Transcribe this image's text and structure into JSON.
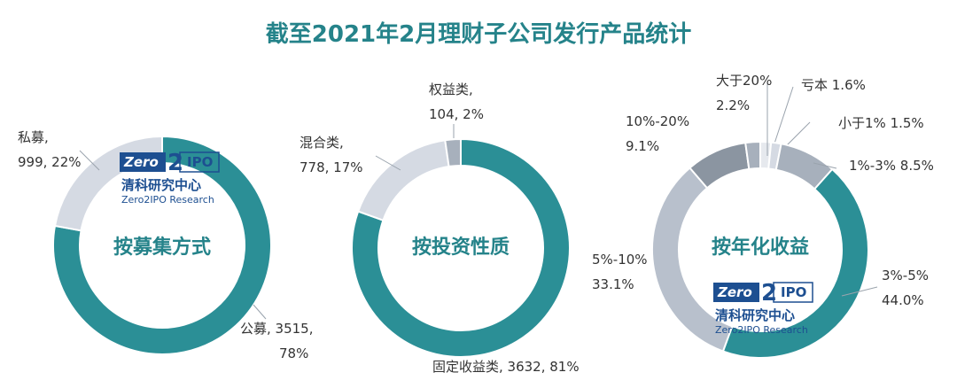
{
  "title": "截至2021年2月理财子公司发行产品统计",
  "colors": {
    "teal": "#2b8f96",
    "light_gray": "#d5dae3",
    "mid_gray": "#a7b0bc",
    "dark_gray": "#8b95a1",
    "pale_gray": "#e6e9ee",
    "soft_gray": "#b8c0cc",
    "title": "#25838a"
  },
  "logo": {
    "zero": "Zero",
    "two": "2",
    "ipo": "IPO",
    "cn": "清科研究中心",
    "en": "Zero2IPO Research"
  },
  "chart_data": [
    {
      "type": "pie",
      "center_label": "按募集方式",
      "slices": [
        {
          "name": "公募",
          "value": 3515,
          "percent": 78,
          "label_line1": "公募, 3515,",
          "label_line2": "78%",
          "color": "#2b8f96"
        },
        {
          "name": "私募",
          "value": 999,
          "percent": 22,
          "label_line1": "私募,",
          "label_line2": "999, 22%",
          "color": "#d5dae3"
        }
      ]
    },
    {
      "type": "pie",
      "center_label": "按投资性质",
      "slices": [
        {
          "name": "固定收益类",
          "value": 3632,
          "percent": 81,
          "label_line1": "固定收益类, 3632, 81%",
          "label_line2": "",
          "color": "#2b8f96"
        },
        {
          "name": "混合类",
          "value": 778,
          "percent": 17,
          "label_line1": "混合类,",
          "label_line2": "778, 17%",
          "color": "#d5dae3"
        },
        {
          "name": "权益类",
          "value": 104,
          "percent": 2,
          "label_line1": "权益类,",
          "label_line2": "104, 2%",
          "color": "#a7b0bc"
        }
      ]
    },
    {
      "type": "pie",
      "center_label": "按年化收益",
      "slices": [
        {
          "name": "亏本",
          "percent": 1.6,
          "label_line1": "亏本 1.6%",
          "label_line2": "",
          "color": "#e6e9ee"
        },
        {
          "name": "小于1%",
          "percent": 1.5,
          "label_line1": "小于1% 1.5%",
          "label_line2": "",
          "color": "#d5dae3"
        },
        {
          "name": "1%-3%",
          "percent": 8.5,
          "label_line1": "1%-3% 8.5%",
          "label_line2": "",
          "color": "#a7b0bc"
        },
        {
          "name": "3%-5%",
          "percent": 44.0,
          "label_line1": "3%-5%",
          "label_line2": "44.0%",
          "color": "#2b8f96"
        },
        {
          "name": "5%-10%",
          "percent": 33.1,
          "label_line1": "5%-10%",
          "label_line2": "33.1%",
          "color": "#b8c0cc"
        },
        {
          "name": "10%-20%",
          "percent": 9.1,
          "label_line1": "10%-20%",
          "label_line2": "9.1%",
          "color": "#8b95a1"
        },
        {
          "name": "大于20%",
          "percent": 2.2,
          "label_line1": "大于20%",
          "label_line2": "2.2%",
          "color": "#a7b0bc"
        }
      ]
    }
  ]
}
